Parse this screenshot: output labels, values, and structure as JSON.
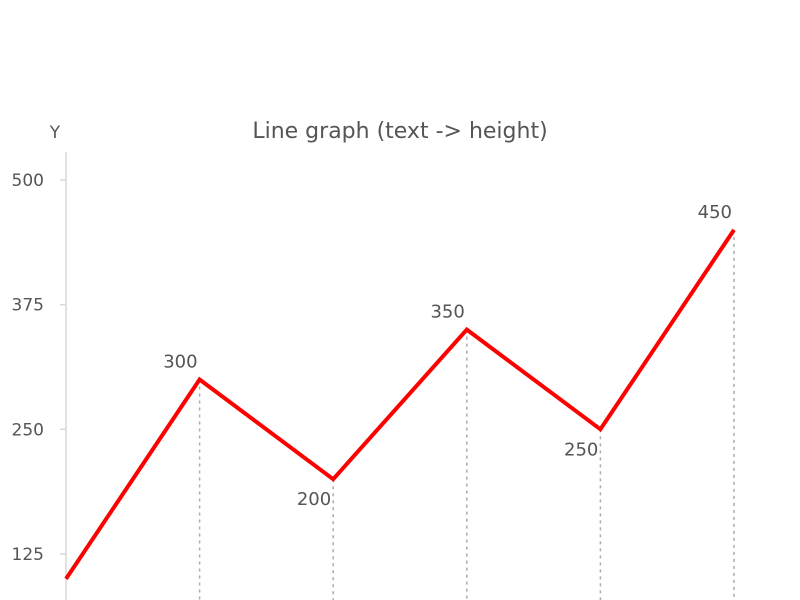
{
  "chart_data": {
    "type": "line",
    "title": "Line graph (text -> height)",
    "xlabel": "",
    "ylabel": "Y",
    "ylim": [
      100,
      500
    ],
    "yticks": [
      125,
      250,
      375,
      500
    ],
    "grid": false,
    "series": [
      {
        "color": "#ff0000",
        "values": [
          100,
          300,
          200,
          350,
          250,
          450
        ],
        "labels": [
          "",
          "300",
          "200",
          "350",
          "250",
          "450"
        ]
      }
    ]
  }
}
